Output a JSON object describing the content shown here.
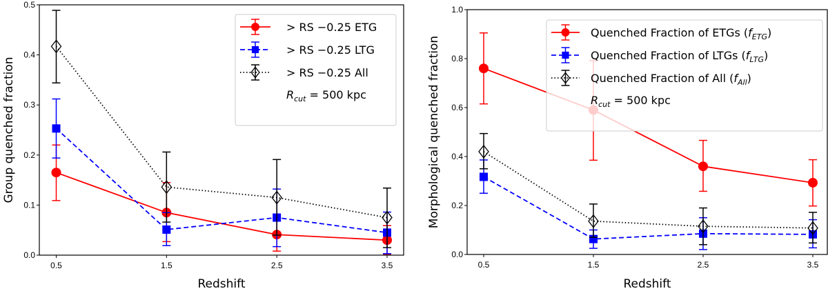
{
  "chart_data": [
    {
      "type": "line",
      "xlabel": "Redshift",
      "ylabel": "Group quenched fraction",
      "ylim": [
        0,
        0.5
      ],
      "yticks": [
        "0.0",
        "0.1",
        "0.2",
        "0.3",
        "0.4",
        "0.5"
      ],
      "x": [
        0.5,
        1.5,
        2.5,
        3.5
      ],
      "xticks": [
        "0.5",
        "1.5",
        "2.5",
        "3.5"
      ],
      "legend_position": "top-right",
      "annotation": "R_cut = 500 kpc",
      "annotation_parts": {
        "sym": "R",
        "sub": "cut",
        "rest": " = 500 kpc"
      },
      "series": [
        {
          "name": "> RS −0.25 ETG",
          "color": "#ff0000",
          "marker": "circle",
          "linestyle": "solid",
          "values": [
            0.165,
            0.085,
            0.041,
            0.03
          ],
          "err_low": [
            0.109,
            0.027,
            0.008,
            0.001
          ],
          "err_high": [
            0.22,
            0.145,
            0.075,
            0.059
          ]
        },
        {
          "name": "> RS −0.25 LTG",
          "color": "#0000ff",
          "marker": "square",
          "linestyle": "dashed",
          "values": [
            0.253,
            0.051,
            0.075,
            0.045
          ],
          "err_low": [
            0.194,
            0.019,
            0.017,
            0.003
          ],
          "err_high": [
            0.312,
            0.085,
            0.132,
            0.086
          ]
        },
        {
          "name": "> RS −0.25 All",
          "color": "#000000",
          "marker": "diamond-open",
          "linestyle": "dotted",
          "values": [
            0.417,
            0.136,
            0.115,
            0.075
          ],
          "err_low": [
            0.344,
            0.066,
            0.04,
            0.015
          ],
          "err_high": [
            0.489,
            0.206,
            0.191,
            0.134
          ]
        }
      ]
    },
    {
      "type": "line",
      "xlabel": "Redshift",
      "ylabel": "Morphological quenched fraction",
      "ylim": [
        0,
        1.0
      ],
      "yticks": [
        "0.0",
        "0.2",
        "0.4",
        "0.6",
        "0.8",
        "1.0"
      ],
      "x": [
        0.5,
        1.5,
        2.5,
        3.5
      ],
      "xticks": [
        "0.5",
        "1.5",
        "2.5",
        "3.5"
      ],
      "legend_position": "top-right",
      "annotation": "R_cut = 500 kpc",
      "annotation_parts": {
        "sym": "R",
        "sub": "cut",
        "rest": " = 500 kpc"
      },
      "series": [
        {
          "name": "Quenched Fraction of ETGs (f_ETG)",
          "label_parts": {
            "main": "Quenched Fraction of ETGs (",
            "f": "f",
            "sub": "ETG",
            "end": ")"
          },
          "color": "#ff0000",
          "marker": "circle",
          "linestyle": "solid",
          "values": [
            0.76,
            0.59,
            0.36,
            0.293
          ],
          "err_low": [
            0.615,
            0.385,
            0.258,
            0.198
          ],
          "err_high": [
            0.905,
            0.792,
            0.466,
            0.387
          ]
        },
        {
          "name": "Quenched Fraction of LTGs (f_LTG)",
          "label_parts": {
            "main": "Quenched Fraction of LTGs (",
            "f": "f",
            "sub": "LTG",
            "end": ")"
          },
          "color": "#0000ff",
          "marker": "square",
          "linestyle": "dashed",
          "values": [
            0.317,
            0.063,
            0.085,
            0.082
          ],
          "err_low": [
            0.25,
            0.025,
            0.02,
            0.027
          ],
          "err_high": [
            0.386,
            0.1,
            0.15,
            0.142
          ]
        },
        {
          "name": "Quenched Fraction of All (f_All)",
          "label_parts": {
            "main": "Quenched Fraction of All (",
            "f": "f",
            "sub": "All",
            "end": ")"
          },
          "color": "#000000",
          "marker": "diamond-open",
          "linestyle": "dotted",
          "values": [
            0.42,
            0.136,
            0.115,
            0.108
          ],
          "err_low": [
            0.35,
            0.07,
            0.04,
            0.047
          ],
          "err_high": [
            0.494,
            0.206,
            0.19,
            0.172
          ]
        }
      ]
    }
  ]
}
